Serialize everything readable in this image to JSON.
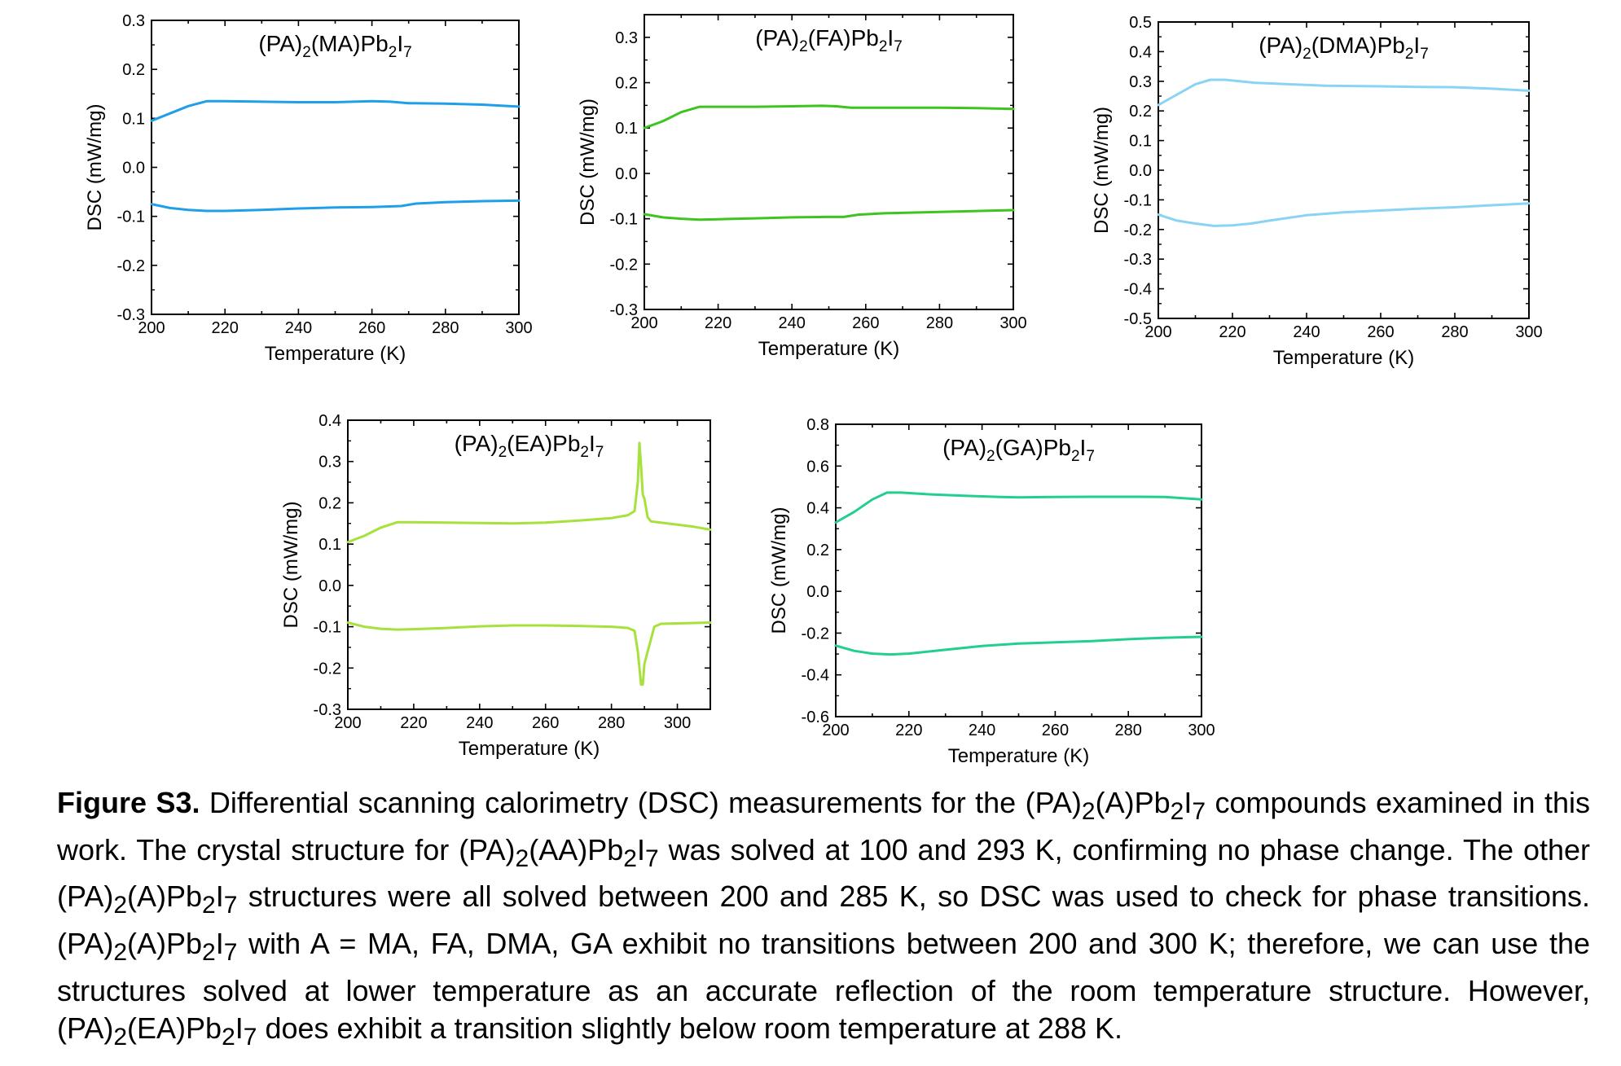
{
  "chart_data": [
    {
      "type": "line",
      "title": {
        "pre": "(PA)",
        "s1": "2",
        "mid": "(MA)Pb",
        "s2": "2",
        "mid2": "I",
        "s3": "7"
      },
      "xlabel": "Temperature (K)",
      "ylabel": "DSC (mW/mg)",
      "xlim": [
        200,
        300
      ],
      "ylim": [
        -0.3,
        0.3
      ],
      "xticks": [
        200,
        220,
        240,
        260,
        280,
        300
      ],
      "yticks": [
        -0.3,
        -0.2,
        -0.1,
        0.0,
        0.1,
        0.2,
        0.3
      ],
      "ytick_labels": [
        "-0.3",
        "-0.2",
        "-0.1",
        "0.0",
        "0.1",
        "0.2",
        "0.3"
      ],
      "color": "#1E9FE8",
      "grid": false,
      "series": [
        {
          "x": [
            200,
            205,
            210,
            215,
            220,
            230,
            240,
            250,
            255,
            260,
            265,
            270,
            280,
            290,
            300
          ],
          "y": [
            0.095,
            0.11,
            0.125,
            0.135,
            0.135,
            0.134,
            0.133,
            0.133,
            0.134,
            0.135,
            0.134,
            0.131,
            0.13,
            0.128,
            0.124
          ]
        },
        {
          "x": [
            200,
            205,
            210,
            215,
            220,
            230,
            240,
            250,
            260,
            268,
            272,
            280,
            290,
            300
          ],
          "y": [
            -0.075,
            -0.083,
            -0.087,
            -0.089,
            -0.089,
            -0.087,
            -0.084,
            -0.082,
            -0.081,
            -0.079,
            -0.074,
            -0.071,
            -0.069,
            -0.068
          ]
        }
      ]
    },
    {
      "type": "line",
      "title": {
        "pre": "(PA)",
        "s1": "2",
        "mid": "(FA)Pb",
        "s2": "2",
        "mid2": "I",
        "s3": "7"
      },
      "xlabel": "Temperature (K)",
      "ylabel": "DSC (mW/mg)",
      "xlim": [
        200,
        300
      ],
      "ylim": [
        -0.3,
        0.35
      ],
      "xticks": [
        200,
        220,
        240,
        260,
        280,
        300
      ],
      "yticks": [
        -0.3,
        -0.2,
        -0.1,
        0.0,
        0.1,
        0.2,
        0.3
      ],
      "ytick_labels": [
        "-0.3",
        "-0.2",
        "-0.1",
        "0.0",
        "0.1",
        "0.2",
        "0.3"
      ],
      "color": "#3DC41E",
      "grid": false,
      "series": [
        {
          "x": [
            200,
            205,
            210,
            215,
            220,
            230,
            240,
            248,
            252,
            256,
            260,
            270,
            280,
            290,
            300
          ],
          "y": [
            0.1,
            0.115,
            0.135,
            0.147,
            0.147,
            0.147,
            0.148,
            0.149,
            0.148,
            0.145,
            0.145,
            0.145,
            0.145,
            0.144,
            0.142
          ]
        },
        {
          "x": [
            200,
            205,
            210,
            215,
            220,
            230,
            240,
            250,
            254,
            258,
            265,
            280,
            290,
            300
          ],
          "y": [
            -0.09,
            -0.097,
            -0.1,
            -0.102,
            -0.101,
            -0.099,
            -0.097,
            -0.096,
            -0.096,
            -0.091,
            -0.088,
            -0.085,
            -0.083,
            -0.081
          ]
        }
      ]
    },
    {
      "type": "line",
      "title": {
        "pre": "(PA)",
        "s1": "2",
        "mid": "(DMA)Pb",
        "s2": "2",
        "mid2": "I",
        "s3": "7"
      },
      "xlabel": "Temperature (K)",
      "ylabel": "DSC (mW/mg)",
      "xlim": [
        200,
        300
      ],
      "ylim": [
        -0.5,
        0.5
      ],
      "xticks": [
        200,
        220,
        240,
        260,
        280,
        300
      ],
      "yticks": [
        -0.5,
        -0.4,
        -0.3,
        -0.2,
        -0.1,
        0.0,
        0.1,
        0.2,
        0.3,
        0.4,
        0.5
      ],
      "ytick_labels": [
        "-0.5",
        "-0.4",
        "-0.3",
        "-0.2",
        "-0.1",
        "0.0",
        "0.1",
        "0.2",
        "0.3",
        "0.4",
        "0.5"
      ],
      "color": "#8AD3F5",
      "grid": false,
      "series": [
        {
          "x": [
            200,
            205,
            210,
            214,
            218,
            222,
            226,
            235,
            245,
            260,
            270,
            280,
            290,
            300
          ],
          "y": [
            0.22,
            0.255,
            0.29,
            0.305,
            0.305,
            0.3,
            0.295,
            0.29,
            0.285,
            0.283,
            0.281,
            0.28,
            0.275,
            0.268
          ]
        },
        {
          "x": [
            200,
            205,
            210,
            215,
            220,
            225,
            230,
            240,
            250,
            260,
            270,
            280,
            290,
            300
          ],
          "y": [
            -0.15,
            -0.17,
            -0.18,
            -0.188,
            -0.186,
            -0.18,
            -0.17,
            -0.152,
            -0.142,
            -0.136,
            -0.13,
            -0.125,
            -0.118,
            -0.112
          ]
        }
      ]
    },
    {
      "type": "line",
      "title": {
        "pre": "(PA)",
        "s1": "2",
        "mid": "(EA)Pb",
        "s2": "2",
        "mid2": "I",
        "s3": "7"
      },
      "xlabel": "Temperature (K)",
      "ylabel": "DSC (mW/mg)",
      "xlim": [
        200,
        310
      ],
      "ylim": [
        -0.3,
        0.4
      ],
      "xticks": [
        200,
        220,
        240,
        260,
        280,
        300
      ],
      "yticks": [
        -0.3,
        -0.2,
        -0.1,
        0.0,
        0.1,
        0.2,
        0.3,
        0.4
      ],
      "ytick_labels": [
        "-0.3",
        "-0.2",
        "-0.1",
        "0.0",
        "0.1",
        "0.2",
        "0.3",
        "0.4"
      ],
      "color": "#A6E13C",
      "grid": false,
      "series": [
        {
          "x": [
            200,
            205,
            210,
            215,
            220,
            230,
            240,
            250,
            260,
            270,
            280,
            285,
            287,
            288,
            288.5,
            289,
            289.5,
            290,
            291,
            292,
            295,
            300,
            305,
            310
          ],
          "y": [
            0.105,
            0.12,
            0.14,
            0.153,
            0.153,
            0.152,
            0.151,
            0.15,
            0.152,
            0.157,
            0.163,
            0.17,
            0.18,
            0.25,
            0.345,
            0.29,
            0.22,
            0.21,
            0.165,
            0.155,
            0.152,
            0.147,
            0.142,
            0.135
          ]
        },
        {
          "x": [
            200,
            205,
            210,
            215,
            220,
            230,
            240,
            250,
            260,
            270,
            280,
            285,
            287,
            288,
            289,
            289.5,
            290,
            291,
            292,
            293,
            295,
            300,
            310
          ],
          "y": [
            -0.09,
            -0.1,
            -0.105,
            -0.107,
            -0.106,
            -0.103,
            -0.099,
            -0.097,
            -0.097,
            -0.098,
            -0.1,
            -0.103,
            -0.11,
            -0.16,
            -0.24,
            -0.24,
            -0.19,
            -0.16,
            -0.13,
            -0.1,
            -0.093,
            -0.092,
            -0.09
          ]
        }
      ]
    },
    {
      "type": "line",
      "title": {
        "pre": "(PA)",
        "s1": "2",
        "mid": "(GA)Pb",
        "s2": "2",
        "mid2": "I",
        "s3": "7"
      },
      "xlabel": "Temperature (K)",
      "ylabel": "DSC (mW/mg)",
      "xlim": [
        200,
        300
      ],
      "ylim": [
        -0.6,
        0.8
      ],
      "xticks": [
        200,
        220,
        240,
        260,
        280,
        300
      ],
      "yticks": [
        -0.6,
        -0.4,
        -0.2,
        0.0,
        0.2,
        0.4,
        0.6,
        0.8
      ],
      "ytick_labels": [
        "-0.6",
        "-0.4",
        "-0.2",
        "0.0",
        "0.2",
        "0.4",
        "0.6",
        "0.8"
      ],
      "color": "#22CF8F",
      "grid": false,
      "series": [
        {
          "x": [
            200,
            205,
            210,
            214,
            218,
            225,
            235,
            245,
            250,
            260,
            270,
            280,
            290,
            300
          ],
          "y": [
            0.33,
            0.38,
            0.44,
            0.473,
            0.473,
            0.465,
            0.458,
            0.452,
            0.45,
            0.452,
            0.453,
            0.453,
            0.452,
            0.44
          ]
        },
        {
          "x": [
            200,
            205,
            210,
            215,
            220,
            230,
            240,
            250,
            260,
            270,
            280,
            290,
            300
          ],
          "y": [
            -0.26,
            -0.285,
            -0.298,
            -0.302,
            -0.298,
            -0.28,
            -0.262,
            -0.25,
            -0.244,
            -0.238,
            -0.229,
            -0.222,
            -0.218
          ]
        }
      ]
    }
  ],
  "caption": {
    "label": "Figure S3.",
    "p1": " Differential scanning calorimetry (DSC) measurements for the (PA)",
    "p2": "(A)Pb",
    "p3": "I",
    "p4": " compounds examined in this work. The crystal structure for (PA)",
    "p5": "(AA)Pb",
    "p6": "I",
    "p7": " was solved at 100 and 293 K, confirming no phase change. The other (PA)",
    "p8": "(A)Pb",
    "p9": "I",
    "p10": " structures were all solved between 200 and 285 K, so DSC was used to check for phase transitions. (PA)",
    "p11": "(A)Pb",
    "p12": "I",
    "p13": " with A = MA, FA, DMA, GA exhibit no transitions between 200 and 300 K; therefore, we can use the structures solved at lower temperature as an accurate reflection of the room temperature structure. However, (PA)",
    "p14": "(EA)Pb",
    "p15": "I",
    "p16": " does exhibit a transition slightly below room temperature at 288 K.",
    "sub2": "2",
    "sub7": "7"
  }
}
